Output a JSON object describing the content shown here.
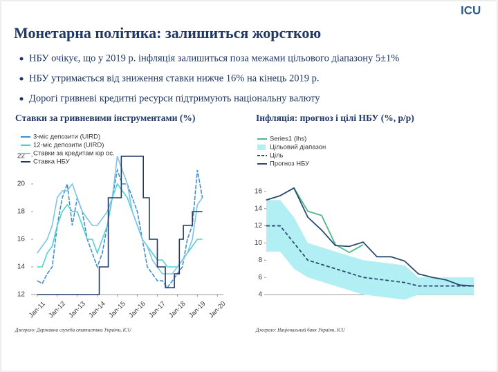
{
  "header": {
    "logo": "ICU",
    "title": "Монетарна політика: залишиться жорсткою"
  },
  "bullets": [
    "НБУ очікує, що у 2019 р. інфляція залишиться поза межами цільового діапазону 5±1%",
    "НБУ утримається від зниження ставки нижче 16% на кінець 2019 р.",
    "Дорогі гривневі кредитні ресурси підтримують національну валюту"
  ],
  "chart_data": [
    {
      "type": "line",
      "title": "Ставки за гривневими інструментами (%)",
      "source": "Джерело: Державна служба статистики України, ICU",
      "x": [
        2011,
        2011.25,
        2011.5,
        2011.75,
        2012,
        2012.25,
        2012.5,
        2012.75,
        2013,
        2013.25,
        2013.5,
        2013.75,
        2014,
        2014.25,
        2014.5,
        2014.75,
        2015,
        2015.25,
        2015.5,
        2015.75,
        2016,
        2016.25,
        2016.5,
        2016.75,
        2017,
        2017.25,
        2017.5,
        2017.75,
        2018,
        2018.25,
        2018.5,
        2018.75,
        2019,
        2019.25
      ],
      "xlim": [
        2010.8,
        2020.3
      ],
      "xticks": [
        {
          "value": 2011,
          "label": "Jan-11"
        },
        {
          "value": 2012,
          "label": "Jan-12"
        },
        {
          "value": 2013,
          "label": "Jan-13"
        },
        {
          "value": 2014,
          "label": "Jan-14"
        },
        {
          "value": 2015,
          "label": "Jan-15"
        },
        {
          "value": 2016,
          "label": "Jan-16"
        },
        {
          "value": 2017,
          "label": "Jan-17"
        },
        {
          "value": 2018,
          "label": "Jan-18"
        },
        {
          "value": 2019,
          "label": "Jan-19"
        },
        {
          "value": 2020,
          "label": "Jan-20"
        }
      ],
      "ylim": [
        12,
        22.5
      ],
      "yticks": [
        12,
        14,
        16,
        18,
        20,
        22
      ],
      "series": [
        {
          "name": "3-міс депозити (UIRD)",
          "color": "#3d8fd1",
          "values": [
            13,
            12.8,
            13.5,
            14,
            17,
            19,
            20,
            17,
            19,
            18,
            16,
            15,
            14,
            15,
            17,
            19,
            21,
            20,
            20,
            19,
            18,
            16,
            14,
            13.5,
            13,
            13,
            12.5,
            13,
            13.5,
            14,
            16,
            17,
            21,
            19
          ]
        },
        {
          "name": "12-міс депозити (UIRD)",
          "color": "#4fd1d1",
          "values": [
            14,
            14,
            15,
            15.5,
            17,
            18,
            18.5,
            18,
            18,
            17,
            16,
            16,
            15,
            16,
            17,
            19,
            20,
            19.5,
            19,
            18,
            17,
            16,
            15.5,
            15,
            14.5,
            14.5,
            14,
            14,
            14,
            14.5,
            15,
            15.5,
            16,
            16
          ]
        },
        {
          "name": "Ставки за кредитам юр ос.",
          "color": "#7cc3ea",
          "values": [
            15,
            15.5,
            16,
            17,
            19,
            19.5,
            19.5,
            20,
            19,
            18,
            17.5,
            17,
            17,
            17.5,
            18,
            19,
            22,
            21,
            20,
            18,
            17,
            16,
            15.5,
            14.5,
            14,
            13.5,
            13.5,
            13.5,
            14,
            14.5,
            15,
            16,
            18.5,
            19
          ]
        },
        {
          "name": "Ставка НБУ",
          "color": "#1f3864",
          "x": [
            2011,
            2014.1,
            2014.1,
            2014.55,
            2014.55,
            2015.2,
            2015.2,
            2016.3,
            2016.3,
            2016.6,
            2016.6,
            2017,
            2017,
            2017.4,
            2017.4,
            2017.85,
            2017.85,
            2018.1,
            2018.1,
            2018.3,
            2018.3,
            2018.75,
            2018.75,
            2019.25
          ],
          "values": [
            12,
            12,
            14,
            14,
            19,
            19,
            22,
            22,
            19,
            19,
            16,
            16,
            14,
            14,
            12.5,
            12.5,
            13.5,
            13.5,
            16,
            16,
            17,
            17,
            18,
            18
          ]
        }
      ]
    },
    {
      "type": "line",
      "title": "Інфляція: прогноз і цілі НБУ (%, р/р)",
      "source": "Джерело: Національний банк України, ICU",
      "categories": [
        null,
        null,
        null,
        null,
        null,
        null,
        null,
        null,
        null,
        null,
        null,
        null,
        null,
        null,
        null,
        null
      ],
      "ylim": [
        4,
        18
      ],
      "yticks": [
        4,
        6,
        8,
        10,
        12,
        14,
        16
      ],
      "series": [
        {
          "name": "Series1 (lhs)",
          "color": "#4cb88a",
          "values": [
            15,
            15.5,
            16.4,
            13.7,
            13.2,
            9.8,
            8.9,
            9.8,
            null,
            null,
            null,
            null,
            null,
            null,
            null,
            null
          ]
        },
        {
          "name": "Цільовий діапазон",
          "color": "#b2eff4",
          "low": [
            9,
            9,
            7,
            6,
            5.5,
            5,
            4.5,
            4,
            3.8,
            3.6,
            3.4,
            4,
            4,
            4,
            4,
            4
          ],
          "high": [
            15,
            15,
            13,
            10,
            9.5,
            9,
            8.5,
            8,
            7.8,
            7.6,
            7.4,
            6,
            6,
            6,
            6,
            6
          ]
        },
        {
          "name": "Ціль",
          "color": "#2d4a6e",
          "dash": true,
          "values": [
            12,
            12,
            10,
            8,
            7.5,
            7,
            6.5,
            6,
            5.8,
            5.6,
            5.4,
            5,
            5,
            5,
            5,
            5
          ]
        },
        {
          "name": "Прогноз НБУ",
          "color": "#2d4a6e",
          "values": [
            15,
            15.5,
            16.4,
            13,
            11.5,
            9.7,
            9.6,
            10.1,
            8.4,
            8.4,
            7.9,
            6.4,
            6,
            5.7,
            5.1,
            5
          ]
        }
      ]
    }
  ]
}
